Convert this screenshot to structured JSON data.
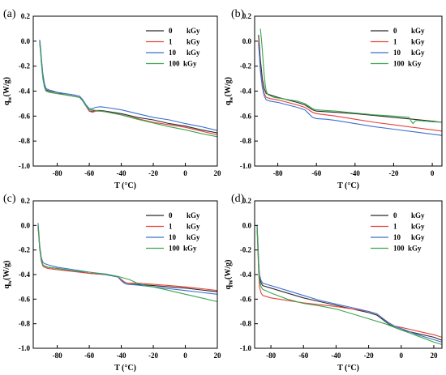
{
  "colors": {
    "0 kGy": "#2b2b2b",
    "1 kGy": "#e8413a",
    "10 kGy": "#3b6fd1",
    "100 kGy": "#3aa64a"
  },
  "chart_data": [
    {
      "panel": "(a)",
      "type": "line",
      "xlabel": "T (°C)",
      "ylabel": "q_w (W/g)",
      "ylabel_main": "q",
      "ylabel_sub": "w",
      "ylabel_rest": "(W/g)",
      "xlim": [
        -95,
        20
      ],
      "ylim": [
        -1.0,
        0.2
      ],
      "xticks": [
        -80,
        -60,
        -40,
        -20,
        0,
        20
      ],
      "xtick_labels": [
        "-80",
        "-60",
        "-40",
        "-20",
        "0",
        "20"
      ],
      "yticks": [
        -1.0,
        -0.8,
        -0.6,
        -0.4,
        -0.2,
        0.0,
        0.2
      ],
      "ytick_labels": [
        "-1.0",
        "-0.8",
        "-0.6",
        "-0.4",
        "-0.2",
        "0.0",
        "0.2"
      ],
      "legend": [
        {
          "dose": "0",
          "unit": "kGy"
        },
        {
          "dose": "1",
          "unit": "kGy"
        },
        {
          "dose": "10",
          "unit": "kGy"
        },
        {
          "dose": "100",
          "unit": "kGy"
        }
      ],
      "series": [
        {
          "name": "0 kGy",
          "color": "#2b2b2b",
          "x": [
            -91,
            -90.5,
            -90,
            -89,
            -88,
            -87,
            -85,
            -80,
            -75,
            -70,
            -66,
            -64,
            -62,
            -60,
            -58,
            -56,
            -53,
            -50,
            -40,
            -30,
            -20,
            -10,
            0,
            10,
            20
          ],
          "y": [
            0.01,
            -0.05,
            -0.14,
            -0.27,
            -0.35,
            -0.39,
            -0.4,
            -0.41,
            -0.43,
            -0.44,
            -0.45,
            -0.48,
            -0.52,
            -0.56,
            -0.56,
            -0.555,
            -0.555,
            -0.56,
            -0.58,
            -0.61,
            -0.63,
            -0.66,
            -0.68,
            -0.71,
            -0.735
          ]
        },
        {
          "name": "1 kGy",
          "color": "#e8413a",
          "x": [
            -91,
            -90.5,
            -90,
            -89,
            -88,
            -87,
            -85,
            -80,
            -75,
            -70,
            -66,
            -64,
            -62,
            -60,
            -58,
            -56,
            -53,
            -50,
            -40,
            -30,
            -20,
            -10,
            0,
            10,
            20
          ],
          "y": [
            0.0,
            -0.06,
            -0.15,
            -0.28,
            -0.36,
            -0.4,
            -0.41,
            -0.42,
            -0.43,
            -0.44,
            -0.45,
            -0.48,
            -0.52,
            -0.56,
            -0.57,
            -0.56,
            -0.56,
            -0.565,
            -0.59,
            -0.62,
            -0.65,
            -0.67,
            -0.69,
            -0.72,
            -0.75
          ]
        },
        {
          "name": "10 kGy",
          "color": "#3b6fd1",
          "x": [
            -91,
            -90.5,
            -90,
            -89,
            -88,
            -87,
            -85,
            -80,
            -75,
            -70,
            -66,
            -64,
            -62,
            -60,
            -58,
            -56,
            -53,
            -50,
            -40,
            -30,
            -20,
            -10,
            0,
            10,
            20
          ],
          "y": [
            0.01,
            -0.05,
            -0.13,
            -0.26,
            -0.34,
            -0.38,
            -0.39,
            -0.41,
            -0.42,
            -0.43,
            -0.44,
            -0.47,
            -0.51,
            -0.54,
            -0.54,
            -0.53,
            -0.525,
            -0.53,
            -0.55,
            -0.58,
            -0.61,
            -0.63,
            -0.66,
            -0.685,
            -0.715
          ]
        },
        {
          "name": "100 kGy",
          "color": "#3aa64a",
          "x": [
            -91,
            -90.5,
            -90,
            -89,
            -88,
            -87,
            -85,
            -80,
            -75,
            -70,
            -66,
            -64,
            -62,
            -60,
            -58,
            -56,
            -53,
            -50,
            -40,
            -30,
            -20,
            -10,
            0,
            10,
            20
          ],
          "y": [
            -0.02,
            -0.08,
            -0.17,
            -0.3,
            -0.37,
            -0.4,
            -0.41,
            -0.42,
            -0.43,
            -0.44,
            -0.45,
            -0.48,
            -0.52,
            -0.55,
            -0.55,
            -0.555,
            -0.56,
            -0.565,
            -0.59,
            -0.625,
            -0.655,
            -0.685,
            -0.71,
            -0.74,
            -0.765
          ]
        }
      ]
    },
    {
      "panel": "(b)",
      "type": "line",
      "xlabel": "T (°C)",
      "ylabel": "q_w (W/g)",
      "ylabel_main": "q",
      "ylabel_sub": "w",
      "ylabel_rest": "(W/g)",
      "xlim": [
        -92,
        5
      ],
      "ylim": [
        -1.0,
        0.2
      ],
      "xticks": [
        -80,
        -60,
        -40,
        -20,
        0
      ],
      "xtick_labels": [
        "-80",
        "-60",
        "-40",
        "-20",
        "0"
      ],
      "yticks": [
        -1.0,
        -0.8,
        -0.6,
        -0.4,
        -0.2,
        0.0,
        0.2
      ],
      "ytick_labels": [
        "-1.0",
        "-0.8",
        "-0.6",
        "-0.4",
        "-0.2",
        "0.0",
        "0.2"
      ],
      "legend": [
        {
          "dose": "0",
          "unit": "kGy"
        },
        {
          "dose": "1",
          "unit": "kGy"
        },
        {
          "dose": "10",
          "unit": "kGy"
        },
        {
          "dose": "100",
          "unit": "kGy"
        }
      ],
      "series": [
        {
          "name": "0 kGy",
          "color": "#2b2b2b",
          "x": [
            -90,
            -89.5,
            -89,
            -88,
            -87,
            -86,
            -84,
            -80,
            -75,
            -70,
            -66,
            -64,
            -62,
            -60,
            -55,
            -50,
            -40,
            -30,
            -20,
            -10,
            0,
            5
          ],
          "y": [
            0.05,
            -0.05,
            -0.15,
            -0.3,
            -0.38,
            -0.42,
            -0.43,
            -0.45,
            -0.47,
            -0.49,
            -0.51,
            -0.53,
            -0.55,
            -0.56,
            -0.565,
            -0.57,
            -0.58,
            -0.595,
            -0.61,
            -0.625,
            -0.64,
            -0.65
          ]
        },
        {
          "name": "1 kGy",
          "color": "#e8413a",
          "x": [
            -90,
            -89.5,
            -89,
            -88,
            -87,
            -86,
            -84,
            -80,
            -75,
            -70,
            -66,
            -64,
            -62,
            -60,
            -55,
            -50,
            -40,
            -30,
            -20,
            -10,
            0,
            5
          ],
          "y": [
            0.0,
            -0.1,
            -0.22,
            -0.35,
            -0.42,
            -0.45,
            -0.46,
            -0.47,
            -0.49,
            -0.51,
            -0.53,
            -0.55,
            -0.57,
            -0.58,
            -0.59,
            -0.6,
            -0.625,
            -0.65,
            -0.67,
            -0.69,
            -0.71,
            -0.72
          ]
        },
        {
          "name": "10 kGy",
          "color": "#3b6fd1",
          "x": [
            -90,
            -89.5,
            -89,
            -88,
            -87,
            -86,
            -84,
            -80,
            -75,
            -70,
            -66,
            -64,
            -62,
            -60,
            -55,
            -50,
            -40,
            -30,
            -20,
            -10,
            0,
            5
          ],
          "y": [
            -0.02,
            -0.12,
            -0.24,
            -0.37,
            -0.44,
            -0.47,
            -0.48,
            -0.49,
            -0.51,
            -0.53,
            -0.55,
            -0.58,
            -0.61,
            -0.62,
            -0.625,
            -0.635,
            -0.66,
            -0.685,
            -0.705,
            -0.725,
            -0.745,
            -0.755
          ]
        },
        {
          "name": "100 kGy",
          "color": "#3aa64a",
          "x": [
            -89,
            -88.5,
            -88,
            -87.5,
            -87,
            -86.5,
            -86,
            -85,
            -82,
            -78,
            -74,
            -70,
            -66,
            -64,
            -62,
            -60,
            -55,
            -50,
            -40,
            -30,
            -20,
            -12,
            -11,
            -10,
            -9,
            -8,
            0,
            5
          ],
          "y": [
            0.1,
            0.02,
            -0.07,
            -0.18,
            -0.28,
            -0.35,
            -0.4,
            -0.43,
            -0.45,
            -0.46,
            -0.47,
            -0.48,
            -0.5,
            -0.52,
            -0.54,
            -0.55,
            -0.555,
            -0.56,
            -0.575,
            -0.59,
            -0.6,
            -0.61,
            -0.64,
            -0.66,
            -0.64,
            -0.635,
            -0.645,
            -0.65
          ]
        }
      ]
    },
    {
      "panel": "(c)",
      "type": "line",
      "xlabel": "T (°C)",
      "ylabel": "q_w (W/g)",
      "ylabel_main": "q",
      "ylabel_sub": "w",
      "ylabel_rest": "(W/g)",
      "xlim": [
        -95,
        20
      ],
      "ylim": [
        -1.0,
        0.2
      ],
      "xticks": [
        -80,
        -60,
        -40,
        -20,
        0,
        20
      ],
      "xtick_labels": [
        "-80",
        "-60",
        "-40",
        "-20",
        "0",
        "20"
      ],
      "yticks": [
        -1.0,
        -0.8,
        -0.6,
        -0.4,
        -0.2,
        0.0,
        0.2
      ],
      "ytick_labels": [
        "-1.0",
        "-0.8",
        "-0.6",
        "-0.4",
        "-0.2",
        "0.0",
        "0.2"
      ],
      "legend": [
        {
          "dose": "0",
          "unit": "kGy"
        },
        {
          "dose": "1",
          "unit": "kGy"
        },
        {
          "dose": "10",
          "unit": "kGy"
        },
        {
          "dose": "100",
          "unit": "kGy"
        }
      ],
      "series": [
        {
          "name": "0 kGy",
          "color": "#2b2b2b",
          "x": [
            -92,
            -91.5,
            -91,
            -90,
            -89,
            -88,
            -86,
            -80,
            -70,
            -60,
            -50,
            -42,
            -40,
            -38,
            -36,
            -30,
            -20,
            -10,
            0,
            10,
            20
          ],
          "y": [
            0.0,
            -0.08,
            -0.18,
            -0.28,
            -0.32,
            -0.33,
            -0.34,
            -0.35,
            -0.37,
            -0.39,
            -0.4,
            -0.42,
            -0.45,
            -0.47,
            -0.48,
            -0.48,
            -0.49,
            -0.5,
            -0.51,
            -0.525,
            -0.54
          ]
        },
        {
          "name": "1 kGy",
          "color": "#e8413a",
          "x": [
            -92,
            -91.5,
            -91,
            -90,
            -89,
            -88,
            -86,
            -80,
            -70,
            -60,
            -50,
            -42,
            -40,
            -38,
            -36,
            -30,
            -20,
            -10,
            0,
            10,
            20
          ],
          "y": [
            -0.01,
            -0.09,
            -0.19,
            -0.29,
            -0.33,
            -0.34,
            -0.35,
            -0.36,
            -0.375,
            -0.39,
            -0.4,
            -0.42,
            -0.44,
            -0.46,
            -0.47,
            -0.47,
            -0.48,
            -0.49,
            -0.5,
            -0.515,
            -0.53
          ]
        },
        {
          "name": "10 kGy",
          "color": "#3b6fd1",
          "x": [
            -92,
            -91.5,
            -91,
            -90,
            -89,
            -88,
            -86,
            -80,
            -70,
            -60,
            -50,
            -42,
            -40,
            -38,
            -36,
            -30,
            -20,
            -10,
            0,
            10,
            20
          ],
          "y": [
            0.02,
            -0.06,
            -0.16,
            -0.26,
            -0.3,
            -0.31,
            -0.32,
            -0.34,
            -0.36,
            -0.38,
            -0.4,
            -0.42,
            -0.45,
            -0.47,
            -0.48,
            -0.485,
            -0.5,
            -0.515,
            -0.53,
            -0.545,
            -0.56
          ]
        },
        {
          "name": "100 kGy",
          "color": "#3aa64a",
          "x": [
            -92,
            -91.5,
            -91,
            -90,
            -89,
            -88,
            -86,
            -80,
            -70,
            -60,
            -50,
            -42,
            -38,
            -35,
            -30,
            -25,
            -20,
            -10,
            0,
            10,
            20
          ],
          "y": [
            0.0,
            -0.08,
            -0.18,
            -0.28,
            -0.32,
            -0.33,
            -0.34,
            -0.35,
            -0.37,
            -0.38,
            -0.395,
            -0.415,
            -0.43,
            -0.44,
            -0.47,
            -0.49,
            -0.5,
            -0.53,
            -0.56,
            -0.59,
            -0.62
          ]
        }
      ]
    },
    {
      "panel": "(d)",
      "type": "line",
      "xlabel": "T (°C)",
      "ylabel": "q_W (W/g)",
      "ylabel_main": "q",
      "ylabel_sub": "W",
      "ylabel_rest": "(W/g)",
      "xlim": [
        -90,
        25
      ],
      "ylim": [
        -1.0,
        0.2
      ],
      "xticks": [
        -80,
        -60,
        -40,
        -20,
        0,
        20
      ],
      "xtick_labels": [
        "-80",
        "-60",
        "-40",
        "-20",
        "0",
        "20"
      ],
      "yticks": [
        -1.0,
        -0.8,
        -0.6,
        -0.4,
        -0.2,
        0.0,
        0.2
      ],
      "ytick_labels": [
        "-1.0",
        "-0.8",
        "-0.6",
        "-0.4",
        "-0.2",
        "0.0",
        "0.2"
      ],
      "legend": [
        {
          "dose": "0",
          "unit": "kGy"
        },
        {
          "dose": "1",
          "unit": "kGy"
        },
        {
          "dose": "10",
          "unit": "kGy"
        },
        {
          "dose": "100",
          "unit": "kGy"
        }
      ],
      "series": [
        {
          "name": "0 kGy",
          "color": "#2b2b2b",
          "x": [
            -88.5,
            -88,
            -87.5,
            -87,
            -86,
            -85,
            -80,
            -70,
            -60,
            -50,
            -40,
            -30,
            -20,
            -15,
            -12,
            -8,
            -4,
            0,
            10,
            20,
            25
          ],
          "y": [
            0.0,
            -0.15,
            -0.32,
            -0.42,
            -0.47,
            -0.49,
            -0.51,
            -0.55,
            -0.59,
            -0.62,
            -0.65,
            -0.68,
            -0.71,
            -0.73,
            -0.76,
            -0.8,
            -0.83,
            -0.85,
            -0.88,
            -0.91,
            -0.935
          ]
        },
        {
          "name": "1 kGy",
          "color": "#e8413a",
          "x": [
            -88.5,
            -88,
            -87.5,
            -87,
            -86,
            -85,
            -80,
            -70,
            -60,
            -50,
            -40,
            -30,
            -20,
            -15,
            -12,
            -8,
            -4,
            0,
            10,
            20,
            25
          ],
          "y": [
            -0.02,
            -0.2,
            -0.38,
            -0.5,
            -0.55,
            -0.57,
            -0.59,
            -0.61,
            -0.63,
            -0.645,
            -0.66,
            -0.68,
            -0.7,
            -0.72,
            -0.75,
            -0.79,
            -0.82,
            -0.83,
            -0.86,
            -0.89,
            -0.91
          ]
        },
        {
          "name": "10 kGy",
          "color": "#3b6fd1",
          "x": [
            -88.5,
            -88,
            -87.5,
            -87,
            -86,
            -85,
            -80,
            -70,
            -60,
            -50,
            -40,
            -30,
            -20,
            -15,
            -12,
            -8,
            -4,
            0,
            10,
            20,
            25
          ],
          "y": [
            0.0,
            -0.13,
            -0.3,
            -0.4,
            -0.45,
            -0.47,
            -0.49,
            -0.53,
            -0.57,
            -0.61,
            -0.64,
            -0.67,
            -0.7,
            -0.72,
            -0.75,
            -0.79,
            -0.82,
            -0.84,
            -0.89,
            -0.93,
            -0.95
          ]
        },
        {
          "name": "100 kGy",
          "color": "#3aa64a",
          "x": [
            -88.5,
            -88,
            -87.5,
            -87,
            -86,
            -85,
            -80,
            -70,
            -60,
            -50,
            -40,
            -30,
            -20,
            -10,
            0,
            10,
            20,
            25
          ],
          "y": [
            -0.01,
            -0.17,
            -0.34,
            -0.45,
            -0.5,
            -0.52,
            -0.55,
            -0.6,
            -0.635,
            -0.655,
            -0.68,
            -0.72,
            -0.76,
            -0.8,
            -0.85,
            -0.9,
            -0.95,
            -0.97
          ]
        }
      ]
    }
  ]
}
